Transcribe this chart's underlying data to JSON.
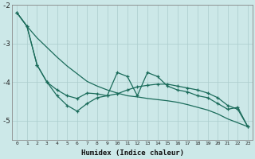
{
  "xlabel": "Humidex (Indice chaleur)",
  "background_color": "#cce8e8",
  "line_color": "#1a6b5a",
  "grid_color": "#aacccc",
  "x": [
    0,
    1,
    2,
    3,
    4,
    5,
    6,
    7,
    8,
    9,
    10,
    11,
    12,
    13,
    14,
    15,
    16,
    17,
    18,
    19,
    20,
    21,
    22,
    23
  ],
  "line1": [
    -2.2,
    -2.55,
    -2.85,
    -3.1,
    -3.35,
    -3.58,
    -3.78,
    -3.98,
    -4.1,
    -4.2,
    -4.28,
    -4.35,
    -4.38,
    -4.42,
    -4.45,
    -4.48,
    -4.52,
    -4.58,
    -4.65,
    -4.72,
    -4.82,
    -4.95,
    -5.05,
    -5.15
  ],
  "line2": [
    -2.2,
    -2.55,
    -3.55,
    -4.0,
    -4.2,
    -4.35,
    -4.42,
    -4.28,
    -4.3,
    -4.35,
    -3.75,
    -3.85,
    -4.35,
    -3.75,
    -3.85,
    -4.1,
    -4.2,
    -4.25,
    -4.35,
    -4.4,
    -4.55,
    -4.7,
    -4.65,
    -5.15
  ],
  "line3": [
    -2.2,
    -2.55,
    -3.55,
    -4.0,
    -4.35,
    -4.6,
    -4.75,
    -4.55,
    -4.4,
    -4.35,
    -4.3,
    -4.2,
    -4.12,
    -4.08,
    -4.05,
    -4.05,
    -4.1,
    -4.15,
    -4.2,
    -4.28,
    -4.4,
    -4.6,
    -4.7,
    -5.15
  ],
  "ylim": [
    -5.5,
    -2.0
  ],
  "xlim": [
    -0.5,
    23.5
  ],
  "yticks": [
    -5,
    -4,
    -3,
    -2
  ],
  "xticks": [
    0,
    1,
    2,
    3,
    4,
    5,
    6,
    7,
    8,
    9,
    10,
    11,
    12,
    13,
    14,
    15,
    16,
    17,
    18,
    19,
    20,
    21,
    22,
    23
  ]
}
